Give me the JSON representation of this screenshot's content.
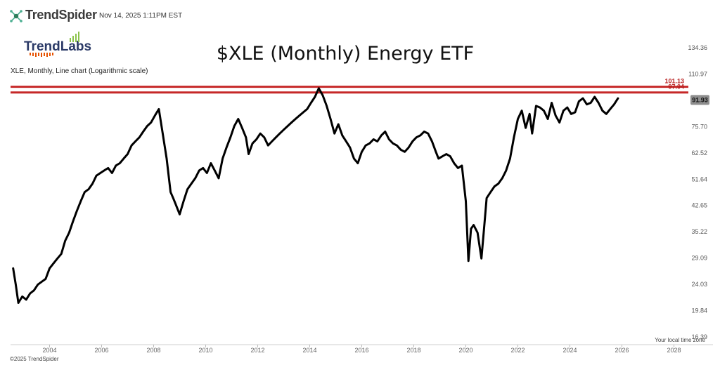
{
  "header": {
    "brand_name": "TrendSpider",
    "timestamp": "Nov 14, 2025 1:11PM EST"
  },
  "logo": {
    "text": "TrendLabs"
  },
  "footer": {
    "copyright": "©2025 TrendSpider",
    "timezone_note": "Your local time zone"
  },
  "colors": {
    "resistance": "#c62828",
    "line": "#000000",
    "axis_label_bg": "#8e8e8e"
  },
  "chart_data": {
    "type": "line",
    "title": "$XLE (Monthly) Energy ETF",
    "subtitle": "XLE, Monthly, Line chart (Logarithmic scale)",
    "scale": "log",
    "y_ticks": [
      "134.36",
      "110.97",
      "91.93",
      "75.70",
      "62.52",
      "51.64",
      "42.65",
      "35.22",
      "29.09",
      "24.03",
      "19.84",
      "16.39"
    ],
    "x_ticks": [
      "2004",
      "2006",
      "2008",
      "2010",
      "2012",
      "2014",
      "2016",
      "2018",
      "2020",
      "2022",
      "2024",
      "2026",
      "2028"
    ],
    "xlim": [
      2002.5,
      2029.5
    ],
    "ylim": [
      15.5,
      155
    ],
    "resistance_levels": [
      101.13,
      97.04
    ],
    "last_price": 91.93,
    "series": [
      {
        "x": [
          2002.6,
          2002.7,
          2002.8,
          2002.95,
          2003.1,
          2003.25,
          2003.4,
          2003.55,
          2003.7,
          2003.85,
          2004.0,
          2004.15,
          2004.3,
          2004.45,
          2004.6,
          2004.75,
          2004.9,
          2005.05,
          2005.2,
          2005.35,
          2005.5,
          2005.65,
          2005.8,
          2005.95,
          2006.1,
          2006.25,
          2006.4,
          2006.55,
          2006.7,
          2006.85,
          2007.0,
          2007.15,
          2007.3,
          2007.45,
          2007.6,
          2007.75,
          2007.9,
          2008.05,
          2008.2,
          2008.35,
          2008.5,
          2008.65,
          2008.75,
          2008.85,
          2009.0,
          2009.15,
          2009.3,
          2009.45,
          2009.6,
          2009.75,
          2009.9,
          2010.05,
          2010.2,
          2010.35,
          2010.5,
          2010.65,
          2010.8,
          2010.95,
          2011.1,
          2011.25,
          2011.4,
          2011.55,
          2011.65,
          2011.8,
          2011.95,
          2012.1,
          2012.25,
          2012.4,
          2012.55,
          2012.7,
          2012.85,
          2013.0,
          2013.15,
          2013.3,
          2013.45,
          2013.6,
          2013.75,
          2013.9,
          2014.05,
          2014.2,
          2014.35,
          2014.5,
          2014.65,
          2014.8,
          2014.95,
          2015.1,
          2015.25,
          2015.4,
          2015.55,
          2015.7,
          2015.85,
          2016.0,
          2016.15,
          2016.3,
          2016.45,
          2016.6,
          2016.75,
          2016.9,
          2017.05,
          2017.2,
          2017.35,
          2017.5,
          2017.65,
          2017.8,
          2017.95,
          2018.1,
          2018.25,
          2018.4,
          2018.55,
          2018.7,
          2018.85,
          2018.95,
          2019.1,
          2019.25,
          2019.4,
          2019.55,
          2019.7,
          2019.85,
          2020.0,
          2020.1,
          2020.2,
          2020.3,
          2020.45,
          2020.6,
          2020.7,
          2020.8,
          2020.95,
          2021.1,
          2021.25,
          2021.4,
          2021.55,
          2021.7,
          2021.85,
          2022.0,
          2022.15,
          2022.3,
          2022.45,
          2022.55,
          2022.7,
          2022.85,
          2023.0,
          2023.15,
          2023.3,
          2023.45,
          2023.6,
          2023.75,
          2023.9,
          2024.05,
          2024.2,
          2024.35,
          2024.5,
          2024.65,
          2024.8,
          2024.95,
          2025.1,
          2025.25,
          2025.4,
          2025.55,
          2025.7,
          2025.85
        ],
        "y": [
          27,
          24,
          21,
          22,
          21.5,
          22.5,
          23,
          24,
          24.5,
          25,
          27,
          28,
          29,
          30,
          33,
          35,
          38,
          41,
          44,
          47,
          48,
          50,
          53,
          54,
          55,
          56,
          54,
          57,
          58,
          60,
          62,
          66,
          68,
          70,
          73,
          76,
          78,
          82,
          86,
          72,
          60,
          47,
          45,
          43,
          40,
          44,
          48,
          50,
          52,
          55,
          56,
          54,
          58,
          55,
          52,
          60,
          65,
          70,
          76,
          80,
          75,
          70,
          62,
          67,
          69,
          72,
          70,
          66,
          68,
          70,
          72,
          74,
          76,
          78,
          80,
          82,
          84,
          86,
          90,
          94,
          100,
          95,
          88,
          80,
          72,
          77,
          71,
          68,
          65,
          60,
          58,
          63,
          66,
          67,
          69,
          68,
          71,
          73,
          69,
          67,
          66,
          64,
          63,
          65,
          68,
          70,
          71,
          73,
          72,
          68,
          63,
          60,
          61,
          62,
          61,
          58,
          56,
          57,
          44,
          28.5,
          36,
          37,
          35,
          29,
          36,
          45,
          47,
          49,
          50,
          52,
          55,
          60,
          70,
          80,
          85,
          75,
          83,
          72,
          88,
          87,
          85,
          80,
          90,
          82,
          78,
          85,
          87,
          83,
          84,
          91,
          93,
          89,
          90,
          94,
          90,
          85,
          83,
          86,
          89,
          93
        ]
      }
    ]
  }
}
